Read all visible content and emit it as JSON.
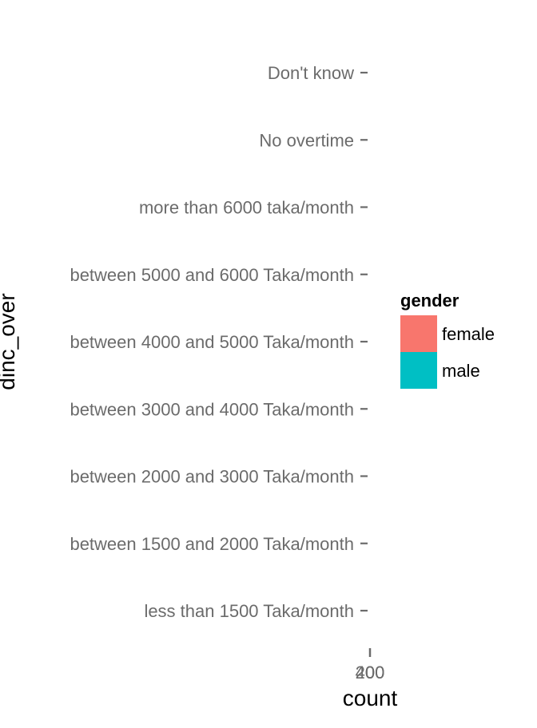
{
  "chart_data": {
    "type": "bar",
    "orientation": "horizontal",
    "stacked": true,
    "categories": [
      "less than 1500 Taka/month",
      "between 1500 and 2000 Taka/month",
      "between 2000 and 3000 Taka/month",
      "between 3000 and 4000 Taka/month",
      "between 4000 and 5000 Taka/month",
      "between 5000 and 6000 Taka/month",
      "more than 6000 taka/month",
      "No overtime",
      "Don't know"
    ],
    "series": [
      {
        "name": "female",
        "color": "#F8766D",
        "values": [
          0,
          0,
          0,
          0,
          0,
          0,
          0,
          0,
          0
        ]
      },
      {
        "name": "male",
        "color": "#00BFC4",
        "values": [
          0,
          0,
          0,
          0,
          0,
          0,
          0,
          0,
          0
        ]
      }
    ],
    "x_ticks": [
      "0",
      "200",
      "400"
    ],
    "xlabel": "count",
    "ylabel": "dinc_over",
    "legend": {
      "title": "gender",
      "position": "right"
    },
    "grid": false
  }
}
